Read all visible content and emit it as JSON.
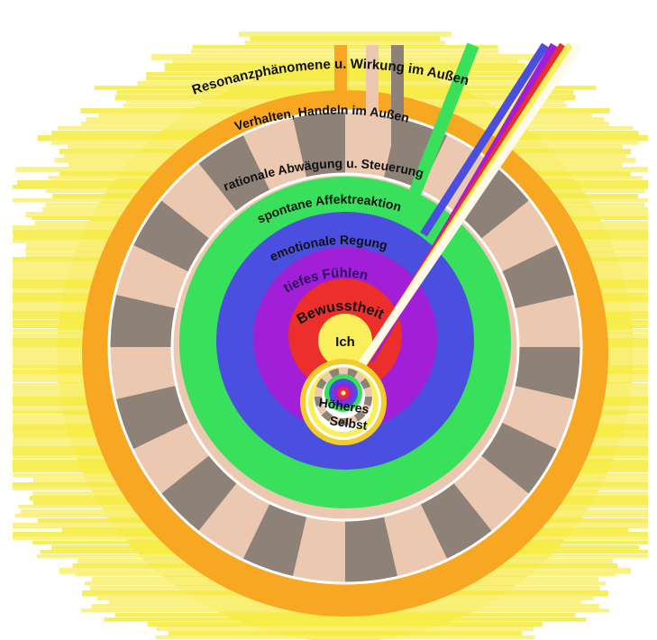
{
  "labels": {
    "resonance": "Resonanzphänomene u. Wirkung im Außen",
    "behavior": "Verhalten, Handeln im Außen",
    "rational": "rationale Abwägung u. Steuerung",
    "affect": "spontane Affektreaktion",
    "emotion": "emotionale Regung",
    "feeling": "tiefes Fühlen",
    "awareness": "Bewusstheit",
    "ego": "Ich",
    "higher_self_line1": "Höheres",
    "higher_self_line2": "Selbst"
  },
  "colors": {
    "background_rays": "#f6ec4a",
    "outer_ring": "#f7a722",
    "segment_dark": "#8e8178",
    "segment_light": "#ecc8b0",
    "green_ring": "#38e05c",
    "blue_ring": "#4b4fe0",
    "violet_ring": "#a21fd8",
    "red_core": "#ec2f2a",
    "ego_yellow": "#f8ef5a",
    "higher_self_gold": "#f2cc2a"
  },
  "beams": [
    {
      "name": "orange-beam",
      "color": "#f7a722"
    },
    {
      "name": "light-beam",
      "color": "#ecc8b0"
    },
    {
      "name": "gray-beam",
      "color": "#8e8178"
    },
    {
      "name": "green-beam",
      "color": "#38e05c"
    },
    {
      "name": "blue-beam",
      "color": "#4b4fe0"
    },
    {
      "name": "violet-beam",
      "color": "#a21fd8"
    },
    {
      "name": "red-beam",
      "color": "#ec2f2a"
    },
    {
      "name": "yellow-beam",
      "color": "#f8ef5a"
    },
    {
      "name": "white-beam",
      "color": "#fffbe8"
    }
  ]
}
